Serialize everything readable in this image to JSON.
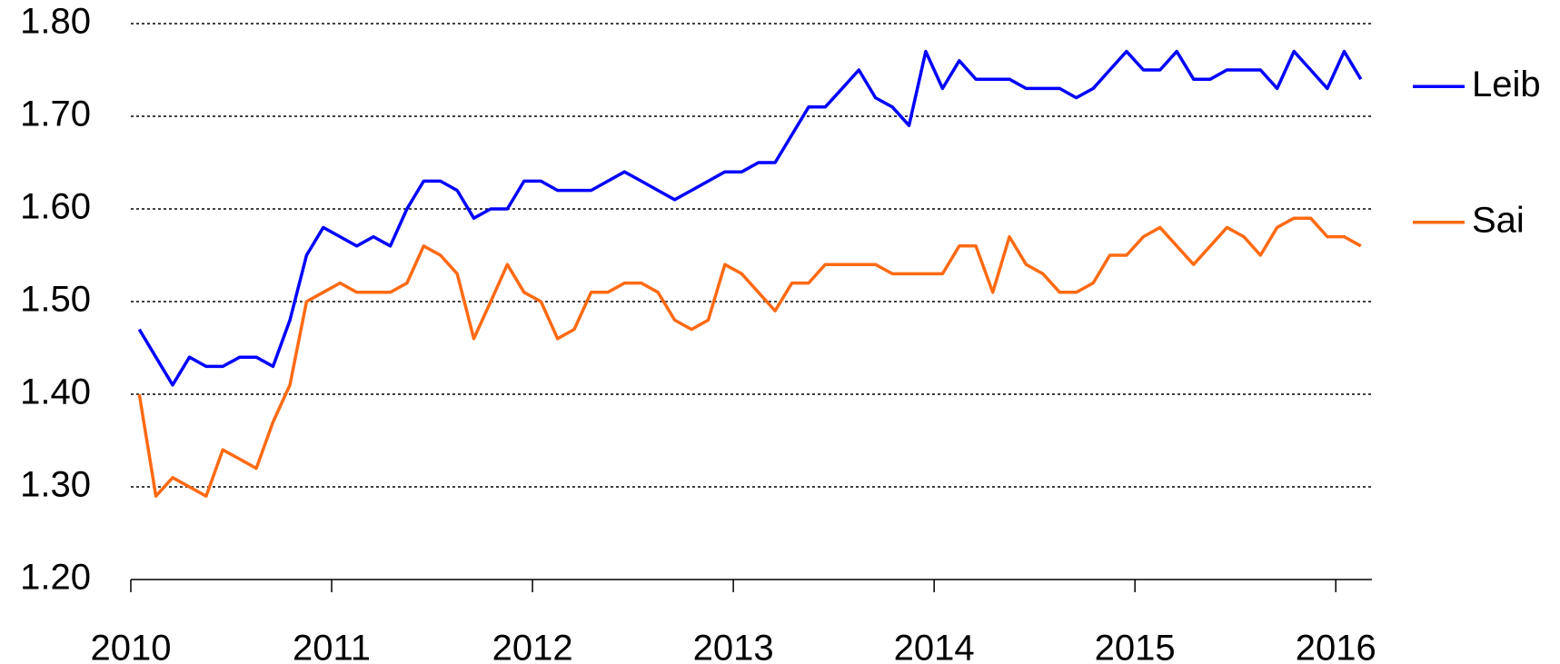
{
  "chart_data": {
    "type": "line",
    "x": [
      2010.042,
      2010.125,
      2010.208,
      2010.292,
      2010.375,
      2010.458,
      2010.542,
      2010.625,
      2010.708,
      2010.792,
      2010.875,
      2010.958,
      2011.042,
      2011.125,
      2011.208,
      2011.292,
      2011.375,
      2011.458,
      2011.542,
      2011.625,
      2011.708,
      2011.792,
      2011.875,
      2011.958,
      2012.042,
      2012.125,
      2012.208,
      2012.292,
      2012.375,
      2012.458,
      2012.542,
      2012.625,
      2012.708,
      2012.792,
      2012.875,
      2012.958,
      2013.042,
      2013.125,
      2013.208,
      2013.292,
      2013.375,
      2013.458,
      2013.542,
      2013.625,
      2013.708,
      2013.792,
      2013.875,
      2013.958,
      2014.042,
      2014.125,
      2014.208,
      2014.292,
      2014.375,
      2014.458,
      2014.542,
      2014.625,
      2014.708,
      2014.792,
      2014.875,
      2014.958,
      2015.042,
      2015.125,
      2015.208,
      2015.292,
      2015.375,
      2015.458,
      2015.542,
      2015.625,
      2015.708,
      2015.792,
      2015.875,
      2015.958,
      2016.042,
      2016.125
    ],
    "series": [
      {
        "name": "Leib",
        "color": "#0000ff",
        "values": [
          1.47,
          1.44,
          1.41,
          1.44,
          1.43,
          1.43,
          1.44,
          1.44,
          1.43,
          1.48,
          1.55,
          1.58,
          1.57,
          1.56,
          1.57,
          1.56,
          1.6,
          1.63,
          1.63,
          1.62,
          1.59,
          1.6,
          1.6,
          1.63,
          1.63,
          1.62,
          1.62,
          1.62,
          1.63,
          1.64,
          1.63,
          1.62,
          1.61,
          1.62,
          1.63,
          1.64,
          1.64,
          1.65,
          1.65,
          1.68,
          1.71,
          1.71,
          1.73,
          1.75,
          1.72,
          1.71,
          1.69,
          1.77,
          1.73,
          1.76,
          1.74,
          1.74,
          1.74,
          1.73,
          1.73,
          1.73,
          1.72,
          1.73,
          1.75,
          1.77,
          1.75,
          1.75,
          1.77,
          1.74,
          1.74,
          1.75,
          1.75,
          1.75,
          1.73,
          1.77,
          1.75,
          1.73,
          1.77,
          1.74
        ]
      },
      {
        "name": "Sai",
        "color": "#ff6a13",
        "values": [
          1.4,
          1.29,
          1.31,
          1.3,
          1.29,
          1.34,
          1.33,
          1.32,
          1.37,
          1.41,
          1.5,
          1.51,
          1.52,
          1.51,
          1.51,
          1.51,
          1.52,
          1.56,
          1.55,
          1.53,
          1.46,
          1.5,
          1.54,
          1.51,
          1.5,
          1.46,
          1.47,
          1.51,
          1.51,
          1.52,
          1.52,
          1.51,
          1.48,
          1.47,
          1.48,
          1.54,
          1.53,
          1.51,
          1.49,
          1.52,
          1.52,
          1.54,
          1.54,
          1.54,
          1.54,
          1.53,
          1.53,
          1.53,
          1.53,
          1.56,
          1.56,
          1.51,
          1.57,
          1.54,
          1.53,
          1.51,
          1.51,
          1.52,
          1.55,
          1.55,
          1.57,
          1.58,
          1.56,
          1.54,
          1.56,
          1.58,
          1.57,
          1.55,
          1.58,
          1.59,
          1.59,
          1.57,
          1.57,
          1.56
        ]
      }
    ],
    "xlim": [
      2010,
      2016.18
    ],
    "xticks": [
      2010,
      2011,
      2012,
      2013,
      2014,
      2015,
      2016
    ],
    "ylim": [
      1.2,
      1.8
    ],
    "yticks": [
      {
        "value": 1.2,
        "label": "1.20"
      },
      {
        "value": 1.3,
        "label": "1.30"
      },
      {
        "value": 1.4,
        "label": "1.40"
      },
      {
        "value": 1.5,
        "label": "1.50"
      },
      {
        "value": 1.6,
        "label": "1.60"
      },
      {
        "value": 1.7,
        "label": "1.70"
      },
      {
        "value": 1.8,
        "label": "1.80"
      }
    ],
    "grid": true,
    "legend": "right"
  }
}
